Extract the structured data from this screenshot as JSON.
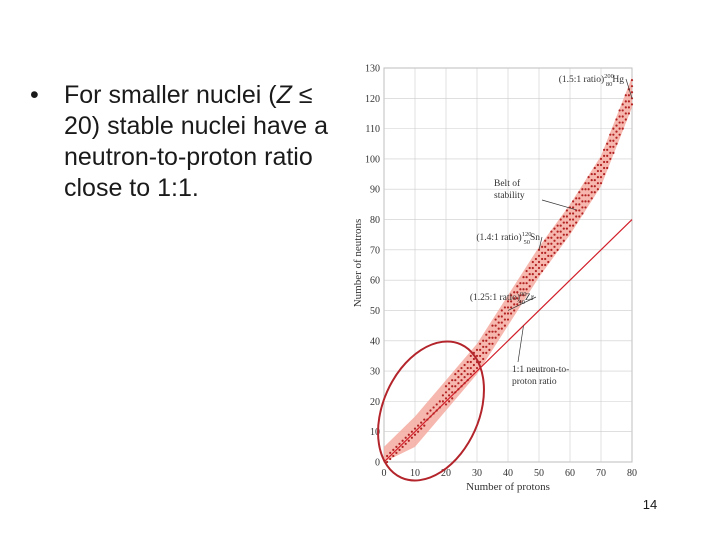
{
  "slide": {
    "bullet": {
      "marker": "•",
      "text_before_z": "For smaller nuclei (",
      "z_symbol": "Z",
      "text_after_z": " ≤ 20) stable nuclei have a neutron-to-proton ratio close to 1:1."
    },
    "page_number": "14"
  },
  "colors": {
    "belt": "#f4aaa0",
    "dots": "#b22222",
    "line": "#d21f2a",
    "circle": "#b3242b",
    "grid": "#cccccc"
  },
  "chart_data": {
    "type": "scatter",
    "xlabel": "Number of protons",
    "ylabel": "Number of neutrons",
    "xlim": [
      0,
      80
    ],
    "ylim": [
      0,
      130
    ],
    "x_ticks": [
      0,
      10,
      20,
      30,
      40,
      50,
      60,
      70,
      80
    ],
    "y_ticks": [
      0,
      10,
      20,
      30,
      40,
      50,
      60,
      70,
      80,
      90,
      100,
      110,
      120,
      130
    ],
    "grid": true,
    "belt_of_stability": {
      "label_line1": "Belt of",
      "label_line2": "stability",
      "center": [
        [
          0,
          0
        ],
        [
          10,
          10
        ],
        [
          20,
          22
        ],
        [
          30,
          34
        ],
        [
          40,
          50
        ],
        [
          50,
          66
        ],
        [
          60,
          80
        ],
        [
          70,
          96
        ],
        [
          80,
          122
        ]
      ],
      "half_width": 5
    },
    "reference_line": {
      "label_line1": "1:1 neutron-to-",
      "label_line2": "proton ratio",
      "points": [
        [
          0,
          0
        ],
        [
          80,
          80
        ]
      ]
    },
    "annotations": [
      {
        "ratio": "(1.5:1 ratio)",
        "mass": "200",
        "atomic": "80",
        "symbol": "Hg",
        "point": [
          80,
          120
        ]
      },
      {
        "ratio": "(1.4:1 ratio)",
        "mass": "120",
        "atomic": "50",
        "symbol": "Sn",
        "point": [
          50,
          70
        ]
      },
      {
        "ratio": "(1.25:1 ratio)",
        "mass": "90",
        "atomic": "40",
        "symbol": "Zr",
        "point": [
          40,
          50
        ]
      }
    ]
  }
}
